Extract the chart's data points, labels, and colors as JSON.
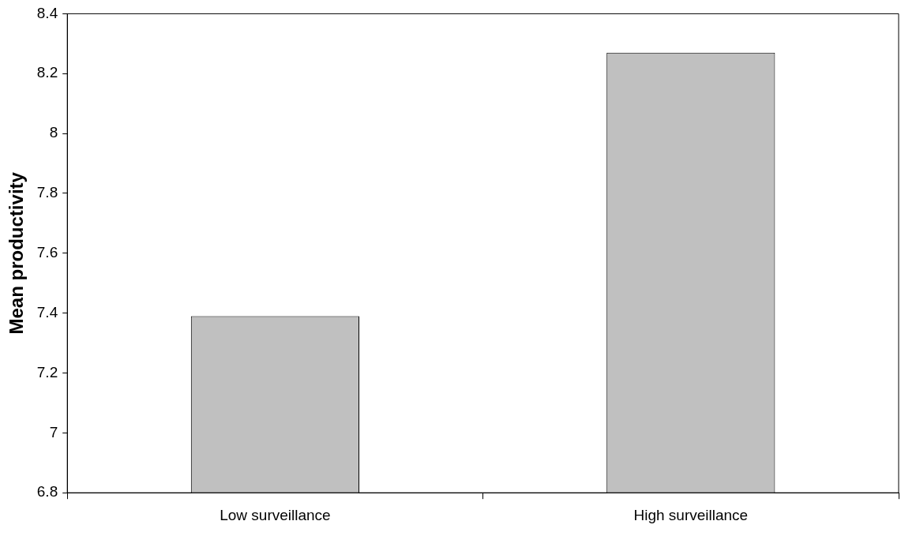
{
  "chart_data": {
    "type": "bar",
    "ylabel": "Mean productivity",
    "categories": [
      "Low surveillance",
      "High surveillance"
    ],
    "values": [
      7.39,
      8.27
    ],
    "color": "#c0c0c0",
    "ylim": [
      6.8,
      8.4
    ],
    "yticks": [
      6.8,
      7,
      7.2,
      7.4,
      7.6,
      7.8,
      8,
      8.2,
      8.4
    ],
    "grid": false,
    "legend": false
  }
}
